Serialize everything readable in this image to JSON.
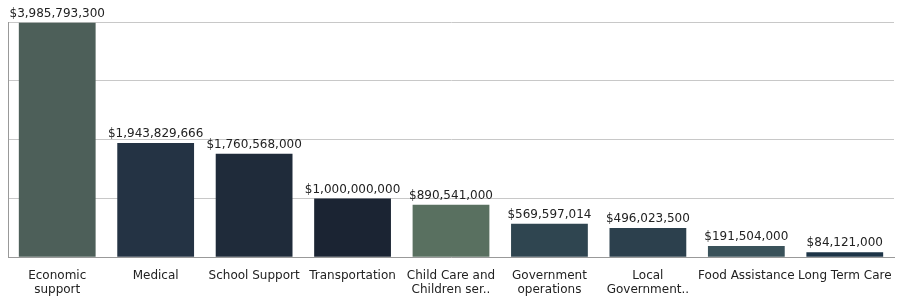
{
  "chart_data": {
    "type": "bar",
    "categories": [
      "Economic support",
      "Medical",
      "School Support",
      "Transportation",
      "Child Care and Children ser..",
      "Government operations",
      "Local Government..",
      "Food Assistance",
      "Long Term Care"
    ],
    "values": [
      3985793300,
      1943829666,
      1760568000,
      1000000000,
      890541000,
      569597014,
      496023500,
      191504000,
      84121000
    ],
    "value_labels": [
      "$3,985,793,300",
      "$1,943,829,666",
      "$1,760,568,000",
      "$1,000,000,000",
      "$890,541,000",
      "$569,597,014",
      "$496,023,500",
      "$191,504,000",
      "$84,121,000"
    ],
    "colors": [
      "#4d5f59",
      "#243344",
      "#1f2b3a",
      "#1b2433",
      "#597060",
      "#2f4550",
      "#2c404d",
      "#3a525a",
      "#1d3447"
    ],
    "ylim": [
      0,
      4000000000
    ],
    "yticks": [
      0,
      1000000000,
      2000000000,
      3000000000,
      4000000000
    ],
    "grid": true,
    "data_labels": true,
    "tick_labels": "x"
  }
}
